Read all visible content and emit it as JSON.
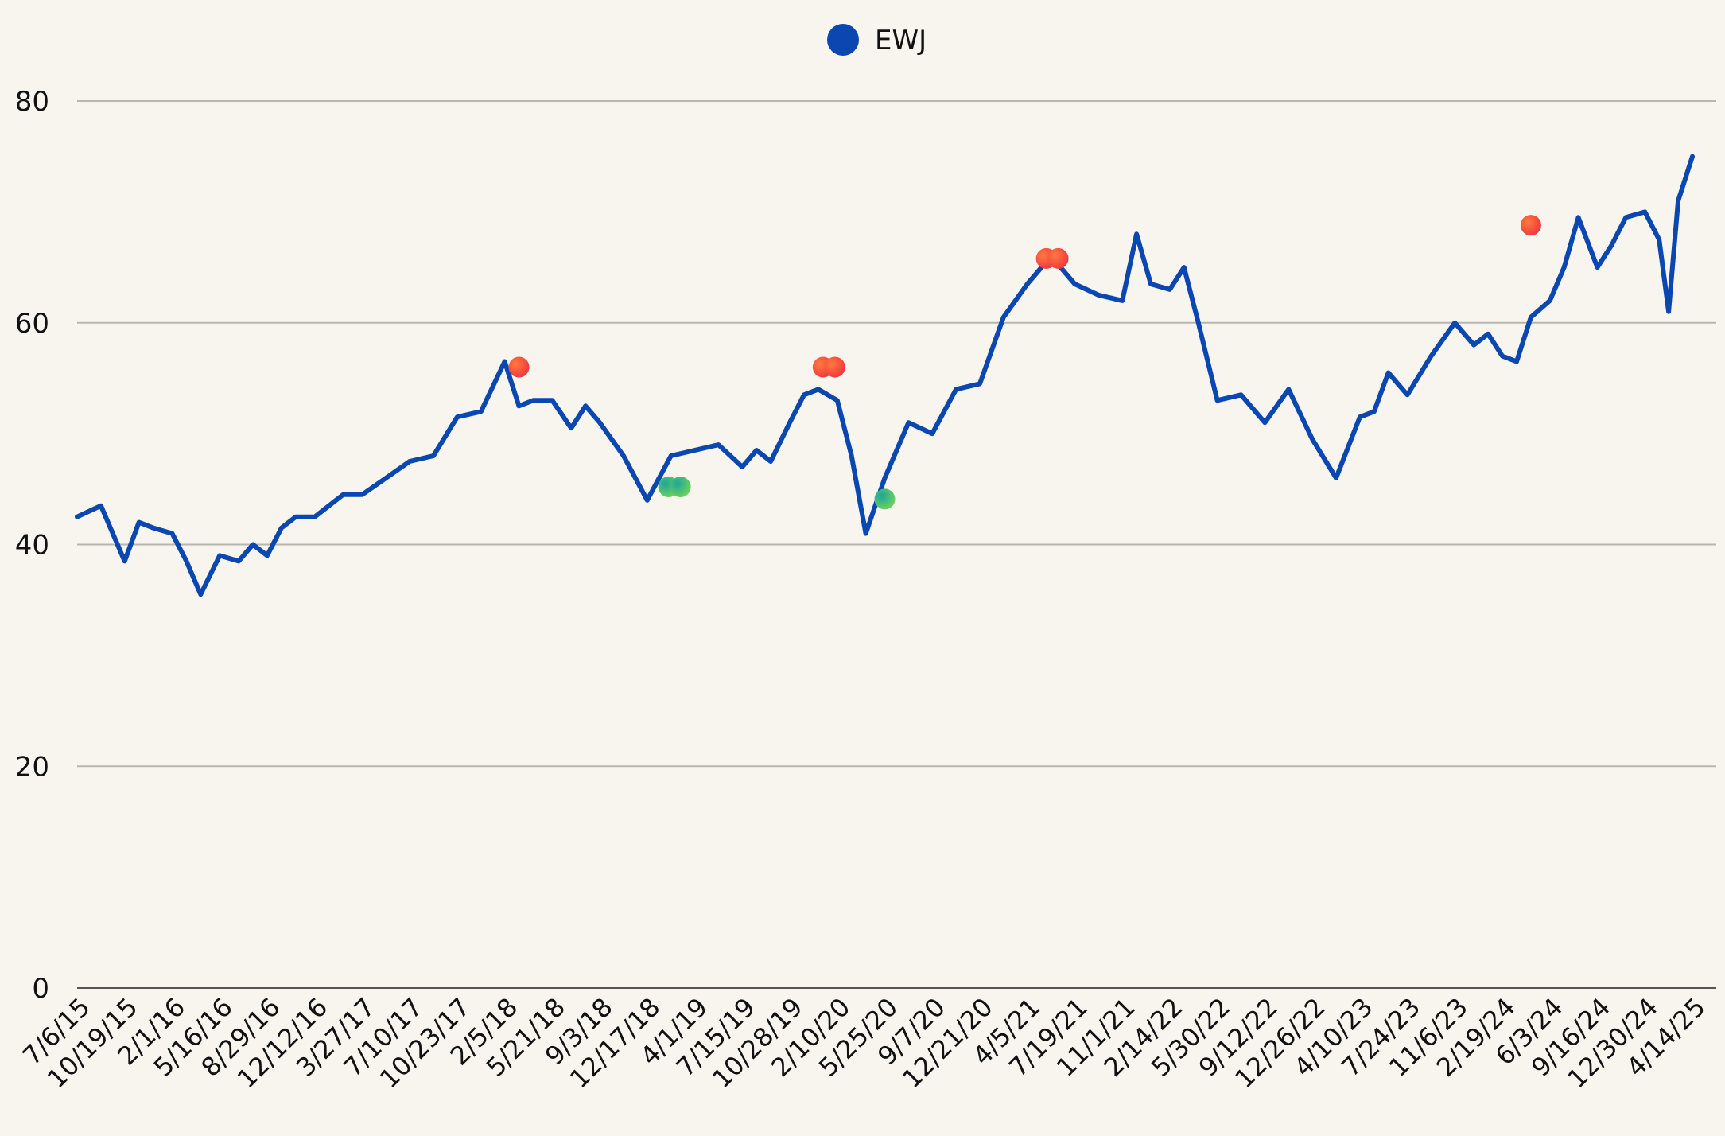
{
  "chart_data": {
    "type": "line",
    "legend": {
      "position": "top-center",
      "entries": [
        {
          "label": "EWJ",
          "color": "#0a47b0"
        }
      ]
    },
    "ylim": [
      0,
      80
    ],
    "yticks": [
      0,
      20,
      40,
      60,
      80
    ],
    "grid": true,
    "x_tick_labels": [
      "7/6/15",
      "10/19/15",
      "2/1/16",
      "5/16/16",
      "8/29/16",
      "12/12/16",
      "3/27/17",
      "7/10/17",
      "10/23/17",
      "2/5/18",
      "5/21/18",
      "9/3/18",
      "12/17/18",
      "4/1/19",
      "7/15/19",
      "10/28/19",
      "2/10/20",
      "5/25/20",
      "9/7/20",
      "12/21/20",
      "4/5/21",
      "7/19/21",
      "11/1/21",
      "2/14/22",
      "5/30/22",
      "9/12/22",
      "12/26/22",
      "4/10/23",
      "7/24/23",
      "11/6/23",
      "2/19/24",
      "6/3/24",
      "9/16/24",
      "12/30/24",
      "4/14/25"
    ],
    "series": [
      {
        "name": "EWJ",
        "color": "#0a47b0",
        "x": [
          0,
          0.5,
          1,
          1.3,
          1.6,
          2,
          2.3,
          2.6,
          3,
          3.4,
          3.7,
          4,
          4.3,
          4.6,
          5,
          5.3,
          5.6,
          6,
          6.5,
          7,
          7.5,
          8,
          8.5,
          9,
          9.3,
          9.6,
          10,
          10.4,
          10.7,
          11,
          11.5,
          12,
          12.5,
          13,
          13.5,
          14,
          14.3,
          14.6,
          15,
          15.3,
          15.6,
          16,
          16.3,
          16.6,
          17,
          17.5,
          18,
          18.5,
          19,
          19.5,
          20,
          20.5,
          21,
          21.5,
          22,
          22.3,
          22.6,
          23,
          23.3,
          23.6,
          24,
          24.5,
          25,
          25.5,
          26,
          26.5,
          27,
          27.3,
          27.6,
          28,
          28.5,
          29,
          29.4,
          29.7,
          30,
          30.3,
          30.6,
          31,
          31.3,
          31.6,
          32,
          32.3,
          32.6,
          33,
          33.3,
          33.5,
          33.7,
          34
        ],
        "values": [
          42.5,
          43.5,
          38.5,
          42,
          41.5,
          41,
          38.5,
          35.5,
          39,
          38.5,
          40,
          39,
          41.5,
          42.5,
          42.5,
          43.5,
          44.5,
          44.5,
          46,
          47.5,
          48,
          51.5,
          52,
          56.5,
          52.5,
          53,
          53,
          50.5,
          52.5,
          51,
          48,
          44,
          48,
          48.5,
          49,
          47,
          48.5,
          47.5,
          51,
          53.5,
          54,
          53,
          48,
          41,
          46,
          51,
          50,
          54,
          54.5,
          60.5,
          63.5,
          66,
          63.5,
          62.5,
          62,
          68,
          63.5,
          63,
          65,
          60,
          53,
          53.5,
          51,
          54,
          49.5,
          46,
          51.5,
          52,
          55.5,
          53.5,
          57,
          60,
          58,
          59,
          57,
          56.5,
          60.5,
          62,
          65,
          69.5,
          65,
          67,
          69.5,
          70,
          67.5,
          61,
          71,
          75
        ]
      }
    ],
    "markers": [
      {
        "type": "sell",
        "color": "#ff5a3a",
        "x": 9.3,
        "y": 56
      },
      {
        "type": "sell",
        "color": "#ff5a3a",
        "x": 15.7,
        "y": 56
      },
      {
        "type": "sell",
        "color": "#ff5a3a",
        "x": 15.95,
        "y": 56
      },
      {
        "type": "sell",
        "color": "#ff5a3a",
        "x": 20.4,
        "y": 65.8
      },
      {
        "type": "sell",
        "color": "#ff5a3a",
        "x": 20.65,
        "y": 65.8
      },
      {
        "type": "sell",
        "color": "#ff5a3a",
        "x": 30.6,
        "y": 68.8
      },
      {
        "type": "buy",
        "color": "#39b86a",
        "x": 12.45,
        "y": 45.2
      },
      {
        "type": "buy",
        "color": "#39b86a",
        "x": 12.7,
        "y": 45.2
      },
      {
        "type": "buy",
        "color": "#39b86a",
        "x": 17.0,
        "y": 44.1
      }
    ]
  }
}
